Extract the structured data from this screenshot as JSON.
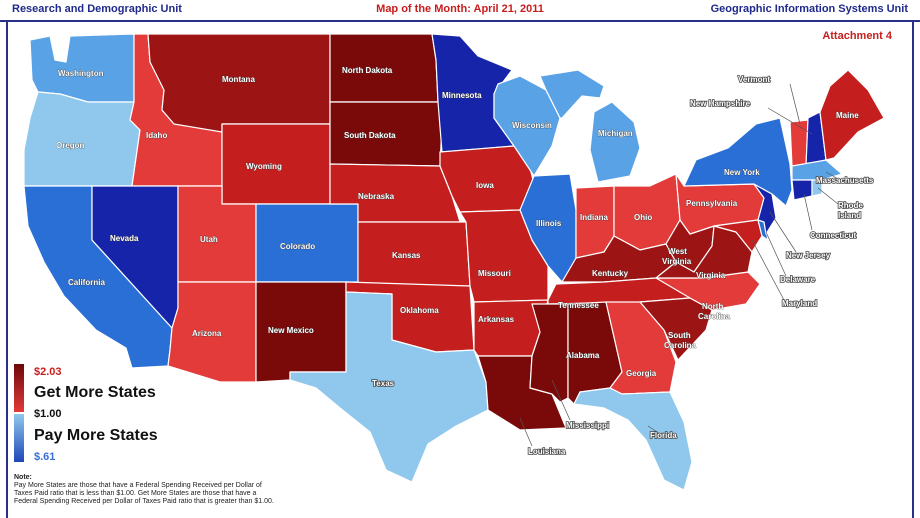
{
  "header": {
    "left": "Research and Demographic Unit",
    "center": "Map of the Month: April 21, 2011",
    "right": "Geographic Information Systems Unit"
  },
  "attachment": "Attachment 4",
  "colors": {
    "darkest_red": "#7a0a0a",
    "dark_red": "#9c1414",
    "red": "#c41e1e",
    "light_red": "#e33a3a",
    "pale_blue": "#8fc8ec",
    "light_blue": "#5aa2e6",
    "blue": "#2a6fd6",
    "dark_blue": "#1524a8"
  },
  "states": {
    "washington": "Washington",
    "oregon": "Oregon",
    "california": "California",
    "idaho": "Idaho",
    "nevada": "Nevada",
    "montana": "Montana",
    "wyoming": "Wyoming",
    "utah": "Utah",
    "arizona": "Arizona",
    "colorado": "Colorado",
    "new_mexico": "New Mexico",
    "north_dakota": "North Dakota",
    "south_dakota": "South Dakota",
    "nebraska": "Nebraska",
    "kansas": "Kansas",
    "oklahoma": "Oklahoma",
    "texas": "Texas",
    "minnesota": "Minnesota",
    "iowa": "Iowa",
    "missouri": "Missouri",
    "arkansas": "Arkansas",
    "louisiana": "Louisiana",
    "wisconsin": "Wisconsin",
    "illinois": "Illinois",
    "mississippi": "Mississippi",
    "michigan": "Michigan",
    "indiana": "Indiana",
    "kentucky": "Kentucky",
    "tennessee": "Tennessee",
    "alabama": "Alabama",
    "ohio": "Ohio",
    "georgia": "Georgia",
    "florida": "Florida",
    "west_virginia_1": "West",
    "west_virginia_2": "Virginia",
    "virginia": "Virginia",
    "north_carolina_1": "North",
    "north_carolina_2": "Carolina",
    "south_carolina_1": "South",
    "south_carolina_2": "Carolina",
    "pennsylvania": "Pennsylvania",
    "new_york": "New York",
    "maine": "Maine",
    "vermont": "Vermont",
    "new_hampshire": "New Hampshire",
    "massachusetts": "Massachusetts",
    "rhode_island_1": "Rhode",
    "rhode_island_2": "Island",
    "connecticut": "Connecticut",
    "new_jersey": "New Jersey",
    "delaware": "Delaware",
    "maryland": "Maryland"
  },
  "legend": {
    "top_value": "$2.03",
    "get_more": "Get More States",
    "mid_value": "$1.00",
    "pay_more": "Pay More States",
    "bottom_value": "$.61"
  },
  "note": {
    "title": "Note:",
    "text": "Pay More States are those that have a Federal Spending Received per Dollar of Taxes Paid ratio that is less than $1.00. Get More States are those that have a Federal Spending Received per Dollar of Taxes Paid ratio that is greater than $1.00."
  }
}
